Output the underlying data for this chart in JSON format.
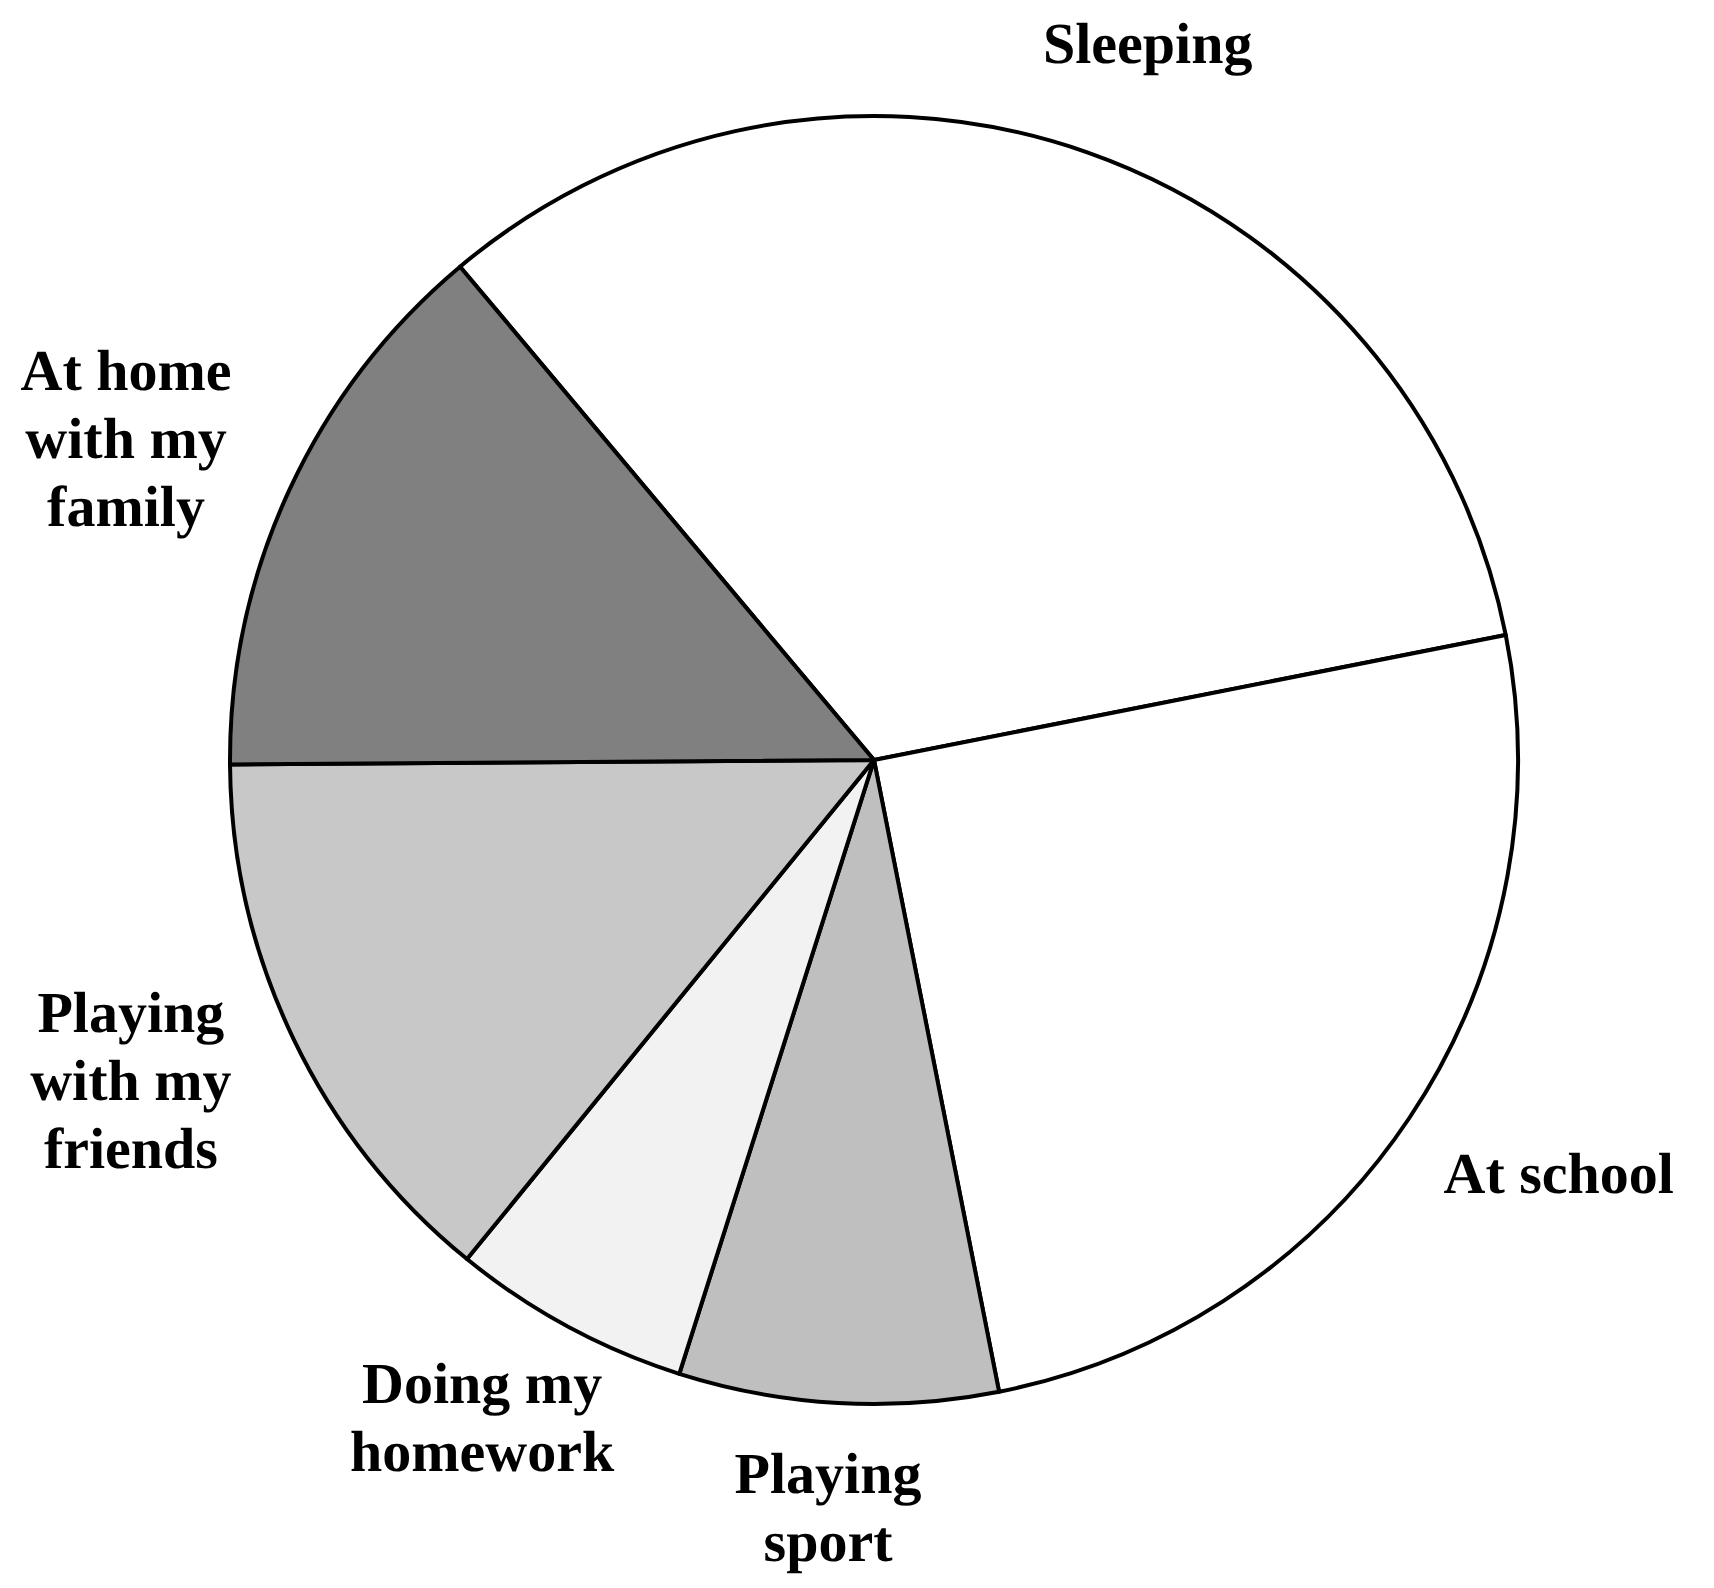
{
  "chart_data": {
    "type": "pie",
    "categories": [
      "Sleeping",
      "At school",
      "Playing\nsport",
      "Doing my\nhomework",
      "Playing\nwith my\nfriends",
      "At home\nwith my\nfamily"
    ],
    "values": [
      33,
      25,
      8,
      6,
      14,
      14
    ],
    "colors": [
      "#ffffff",
      "#ffffff",
      "#bfbfbf",
      "#f2f2f2",
      "#c8c8c8",
      "#808080"
    ]
  }
}
